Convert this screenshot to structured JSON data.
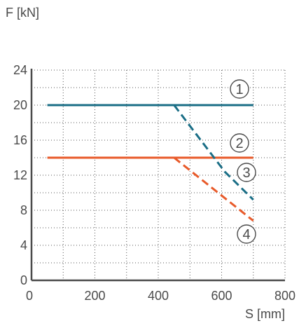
{
  "chart_data": {
    "type": "line",
    "ylabel": "F [kN]",
    "xlabel": "S [mm]",
    "xlim": [
      0,
      800
    ],
    "ylim": [
      0,
      24
    ],
    "xticks": [
      0,
      200,
      400,
      600,
      800
    ],
    "yticks": [
      0,
      4,
      8,
      12,
      16,
      20,
      24
    ],
    "grid": "dotted",
    "colors": {
      "teal": "#1a6e86",
      "orange": "#e85a2a",
      "axis": "#4a4a4a",
      "grid": "#555555"
    },
    "series": [
      {
        "label": "1",
        "color": "#1a6e86",
        "dash": false,
        "x": [
          50,
          700
        ],
        "y": [
          20,
          20
        ]
      },
      {
        "label": "2",
        "color": "#e85a2a",
        "dash": false,
        "x": [
          50,
          700
        ],
        "y": [
          14,
          14
        ]
      },
      {
        "label": "3",
        "color": "#1a6e86",
        "dash": true,
        "x": [
          450,
          610,
          700
        ],
        "y": [
          20,
          12.4,
          9.2
        ]
      },
      {
        "label": "4",
        "color": "#e85a2a",
        "dash": true,
        "x": [
          450,
          700
        ],
        "y": [
          14,
          6.8
        ]
      }
    ]
  }
}
